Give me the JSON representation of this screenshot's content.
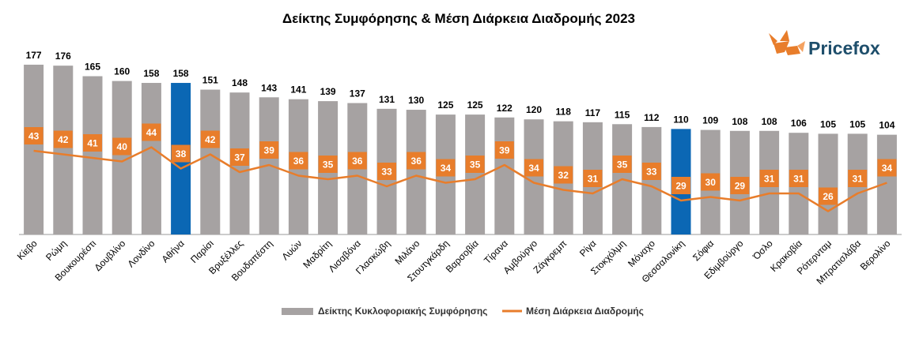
{
  "brand": {
    "name": "Pricefox",
    "logo_icon": "fox-icon"
  },
  "colors": {
    "bar": "#a6a2a2",
    "highlight": "#0b67b4",
    "line": "#e87d2b",
    "axis": "#999999"
  },
  "chart_data": {
    "type": "bar",
    "title": "Δείκτης Συμφόρησης & Μέση Διάρκεια Διαδρομής 2023",
    "categories": [
      "Κίεβο",
      "Ρώμη",
      "Βουκουρέστι",
      "Δουβλίνο",
      "Λονδίνο",
      "Αθήνα",
      "Παρίσι",
      "Βρυξέλλες",
      "Βουδαπέστη",
      "Λυών",
      "Μαδρίτη",
      "Λισαβόνα",
      "Γλασκώβη",
      "Μιλάνο",
      "Στουτγκάρδη",
      "Βαρσοβία",
      "Τίρανα",
      "Αμβούργο",
      "Ζάγκρεμπ",
      "Ρίγα",
      "Στοκχόλμη",
      "Μόναχο",
      "Θεσσαλονίκη",
      "Σόφια",
      "Εδιμβούργο",
      "Όσλο",
      "Κρακοβία",
      "Ρότερνταμ",
      "Μπρατισλάβα",
      "Βερολίνο"
    ],
    "highlighted": [
      "Αθήνα",
      "Θεσσαλονίκη"
    ],
    "series": [
      {
        "name": "Δείκτης Κυκλοφοριακής Συμφόρησης",
        "type": "bar",
        "values": [
          177,
          176,
          165,
          160,
          158,
          158,
          151,
          148,
          143,
          141,
          139,
          137,
          131,
          130,
          125,
          125,
          122,
          120,
          118,
          117,
          115,
          112,
          110,
          109,
          108,
          108,
          106,
          105,
          105,
          104
        ]
      },
      {
        "name": "Μέση Διάρκεια Διαδρομής",
        "type": "line",
        "values": [
          43,
          42,
          41,
          40,
          44,
          38,
          42,
          37,
          39,
          36,
          35,
          36,
          33,
          36,
          34,
          35,
          39,
          34,
          32,
          31,
          35,
          33,
          29,
          30,
          29,
          31,
          31,
          26,
          31,
          34
        ]
      }
    ],
    "legend": "bottom"
  }
}
